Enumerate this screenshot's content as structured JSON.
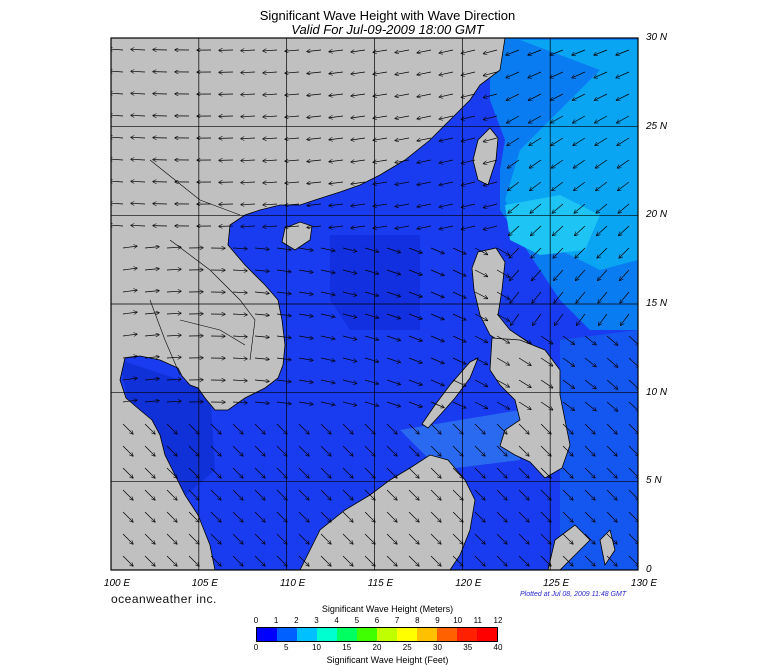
{
  "title": "Significant Wave Height with Wave Direction",
  "subtitle": "Valid For Jul-09-2009 18:00 GMT",
  "brand": "oceanweather inc.",
  "plotted": "Plotted at Jul 08, 2009 11:48 GMT",
  "map": {
    "lon_labels": [
      "100 E",
      "105 E",
      "110 E",
      "115 E",
      "120 E",
      "125 E",
      "130 E"
    ],
    "lat_labels": [
      "30 N",
      "25 N",
      "20 N",
      "15 N",
      "10 N",
      "5 N",
      "0"
    ],
    "land_color": "#c0c0c0",
    "ocean_base_color": "#1a3cf0"
  },
  "colorbar": {
    "title_meters": "Significant Wave Height (Meters)",
    "title_feet": "Significant Wave Height (Feet)",
    "meter_ticks": [
      "0",
      "1",
      "2",
      "3",
      "4",
      "5",
      "6",
      "7",
      "8",
      "9",
      "10",
      "11",
      "12"
    ],
    "feet_ticks": [
      "0",
      "5",
      "10",
      "15",
      "20",
      "25",
      "30",
      "35",
      "40"
    ],
    "colors": [
      "#0000ff",
      "#0060ff",
      "#00c0ff",
      "#00ffd0",
      "#00ff60",
      "#40ff00",
      "#c0ff00",
      "#ffff00",
      "#ffc000",
      "#ff6000",
      "#ff2000",
      "#ff0000"
    ]
  }
}
